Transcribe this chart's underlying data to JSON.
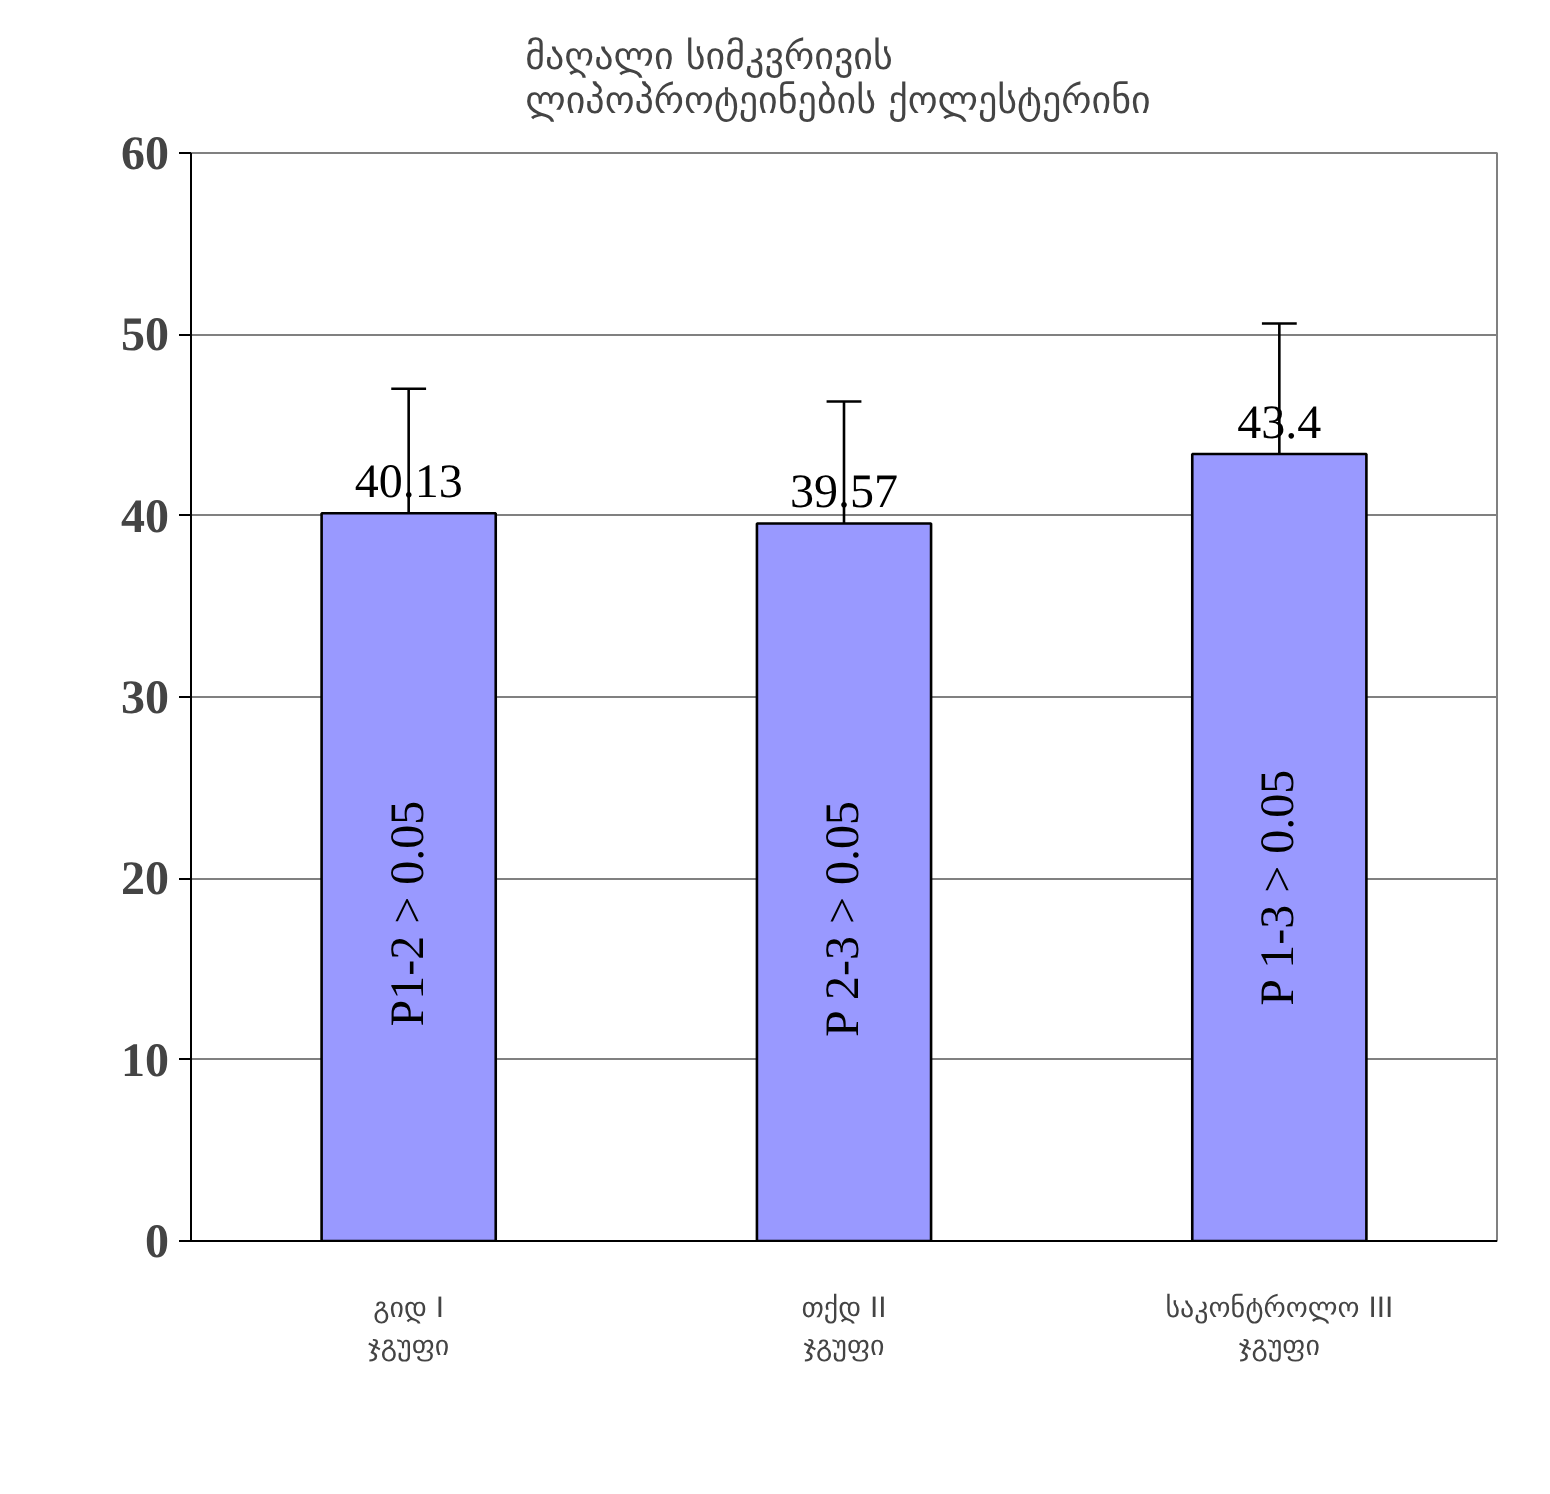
{
  "chart_data": {
    "type": "bar",
    "title": "მაღალი  სიმკვრივის\nლიპოპროტეინების  ქოლესტერინი",
    "categories": [
      "გიდ I ჯგუფი",
      "თქდ II ჯგუფი",
      "საკონტროლო III ჯგუფი"
    ],
    "values": [
      40.13,
      39.57,
      43.4
    ],
    "color": "#9999ff",
    "errors": [
      [
        40.13,
        47.0
      ],
      [
        39.57,
        46.3
      ],
      [
        43.4,
        50.6
      ]
    ],
    "data_labels": true,
    "ylim": [
      0,
      60
    ],
    "yticks": [
      0,
      10,
      20,
      30,
      40,
      50,
      60
    ],
    "grid": "y",
    "annotations": [
      "P1-2 > 0.05",
      "P 2-3 > 0.05",
      "P 1-3 > 0.05"
    ]
  }
}
